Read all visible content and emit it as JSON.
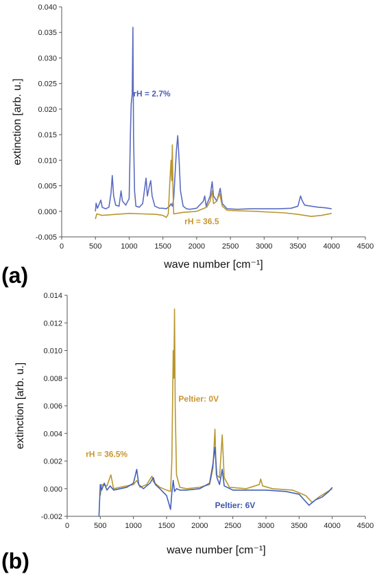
{
  "chart_data": [
    {
      "type": "line",
      "panel_label": "(a)",
      "xlabel": "wave number [cm⁻¹]",
      "ylabel": "extinction [arb. u.]",
      "xlim": [
        0,
        4500
      ],
      "ylim": [
        -0.005,
        0.04
      ],
      "xticks": [
        "0",
        "500",
        "1000",
        "1500",
        "2000",
        "2500",
        "3000",
        "3500",
        "4000",
        "4500"
      ],
      "yticks": [
        "-0.005",
        "0.000",
        "0.005",
        "0.010",
        "0.015",
        "0.020",
        "0.025",
        "0.030",
        "0.035",
        "0.040"
      ],
      "grid": false,
      "annotations": [
        {
          "text": "rH = 2.7%",
          "x": 1060,
          "y": 0.0225,
          "color": "#4a5fb5"
        },
        {
          "text": "rH = 36.5",
          "x": 1820,
          "y": -0.0025,
          "color": "#c9962e"
        }
      ],
      "series": [
        {
          "color": "#5a6bc0",
          "points": [
            [
              500,
              0
            ],
            [
              510,
              0.0016
            ],
            [
              530,
              0.0006
            ],
            [
              550,
              0.0012
            ],
            [
              580,
              0.0022
            ],
            [
              600,
              0.0008
            ],
            [
              650,
              0.0005
            ],
            [
              700,
              0.0008
            ],
            [
              730,
              0.0035
            ],
            [
              750,
              0.007
            ],
            [
              770,
              0.003
            ],
            [
              800,
              0.0012
            ],
            [
              850,
              0.001
            ],
            [
              880,
              0.004
            ],
            [
              900,
              0.002
            ],
            [
              950,
              0.0012
            ],
            [
              1000,
              0.0025
            ],
            [
              1020,
              0.016
            ],
            [
              1030,
              0.021
            ],
            [
              1045,
              0.023
            ],
            [
              1055,
              0.036
            ],
            [
              1065,
              0.015
            ],
            [
              1080,
              0.004
            ],
            [
              1100,
              0.001
            ],
            [
              1150,
              0.0008
            ],
            [
              1200,
              0.0015
            ],
            [
              1250,
              0.0065
            ],
            [
              1270,
              0.003
            ],
            [
              1300,
              0.005
            ],
            [
              1320,
              0.006
            ],
            [
              1340,
              0.003
            ],
            [
              1380,
              0.001
            ],
            [
              1450,
              0.0006
            ],
            [
              1500,
              0.0006
            ],
            [
              1550,
              0.0005
            ],
            [
              1600,
              0.001
            ],
            [
              1620,
              0.0015
            ],
            [
              1640,
              0.001
            ],
            [
              1660,
              0.0025
            ],
            [
              1700,
              0.012
            ],
            [
              1720,
              0.0148
            ],
            [
              1740,
              0.01
            ],
            [
              1760,
              0.004
            ],
            [
              1800,
              0.001
            ],
            [
              1850,
              0.0005
            ],
            [
              1900,
              0.0004
            ],
            [
              2000,
              0.0006
            ],
            [
              2100,
              0.002
            ],
            [
              2120,
              0.003
            ],
            [
              2140,
              0.001
            ],
            [
              2200,
              0.003
            ],
            [
              2230,
              0.0058
            ],
            [
              2250,
              0.003
            ],
            [
              2300,
              0.002
            ],
            [
              2350,
              0.0045
            ],
            [
              2380,
              0.0015
            ],
            [
              2450,
              0.0005
            ],
            [
              2600,
              0.0004
            ],
            [
              2800,
              0.0005
            ],
            [
              3000,
              0.0005
            ],
            [
              3200,
              0.0005
            ],
            [
              3400,
              0.0006
            ],
            [
              3500,
              0.001
            ],
            [
              3540,
              0.003
            ],
            [
              3560,
              0.0022
            ],
            [
              3600,
              0.0012
            ],
            [
              3700,
              0.001
            ],
            [
              3800,
              0.0008
            ],
            [
              3900,
              0.0007
            ],
            [
              4000,
              0.0005
            ]
          ]
        },
        {
          "color": "#b8962e",
          "points": [
            [
              500,
              -0.0015
            ],
            [
              520,
              -0.0005
            ],
            [
              600,
              -0.0008
            ],
            [
              800,
              -0.0006
            ],
            [
              1000,
              -0.0004
            ],
            [
              1200,
              -0.0005
            ],
            [
              1400,
              -0.0006
            ],
            [
              1500,
              -0.0008
            ],
            [
              1550,
              -0.0012
            ],
            [
              1580,
              -0.0005
            ],
            [
              1600,
              0.005
            ],
            [
              1620,
              0.01
            ],
            [
              1630,
              0.006
            ],
            [
              1640,
              0.013
            ],
            [
              1650,
              0.004
            ],
            [
              1660,
              -0.0005
            ],
            [
              1700,
              -0.0004
            ],
            [
              1800,
              -0.0002
            ],
            [
              2000,
              0.0
            ],
            [
              2150,
              0.0008
            ],
            [
              2200,
              0.002
            ],
            [
              2230,
              0.004
            ],
            [
              2250,
              0.0015
            ],
            [
              2300,
              0.002
            ],
            [
              2340,
              0.0035
            ],
            [
              2380,
              0.001
            ],
            [
              2450,
              0.0002
            ],
            [
              2600,
              0.0001
            ],
            [
              2900,
              0.0
            ],
            [
              3000,
              -0.0001
            ],
            [
              3300,
              -0.0003
            ],
            [
              3500,
              -0.0006
            ],
            [
              3700,
              -0.001
            ],
            [
              3850,
              -0.0008
            ],
            [
              4000,
              -0.0004
            ]
          ]
        }
      ]
    },
    {
      "type": "line",
      "panel_label": "(b)",
      "xlabel": "wave number [cm⁻¹]",
      "ylabel": "extinction [arb. u.]",
      "xlim": [
        0,
        4500
      ],
      "ylim": [
        -0.002,
        0.014
      ],
      "xticks": [
        "0",
        "500",
        "1000",
        "1500",
        "2000",
        "2500",
        "3000",
        "3500",
        "4000",
        "4500"
      ],
      "yticks": [
        "-0.002",
        "0.000",
        "0.002",
        "0.004",
        "0.006",
        "0.008",
        "0.010",
        "0.012",
        "0.014"
      ],
      "grid": false,
      "annotations": [
        {
          "text": "Peltier: 0V",
          "x": 1680,
          "y": 0.0063,
          "color": "#c9962e"
        },
        {
          "text": "rH = 36.5%",
          "x": 280,
          "y": 0.0023,
          "color": "#c9962e"
        },
        {
          "text": "Peltier: 6V",
          "x": 2230,
          "y": -0.0014,
          "color": "#3d55b0"
        }
      ],
      "series": [
        {
          "color": "#b8962e",
          "points": [
            [
              500,
              -0.0005
            ],
            [
              520,
              0.0003
            ],
            [
              600,
              0.0002
            ],
            [
              660,
              0.001
            ],
            [
              700,
              0.0
            ],
            [
              800,
              0.0001
            ],
            [
              1000,
              0.0003
            ],
            [
              1050,
              0.0006
            ],
            [
              1100,
              0.0001
            ],
            [
              1200,
              0.0003
            ],
            [
              1280,
              0.0009
            ],
            [
              1300,
              0.0005
            ],
            [
              1400,
              0.0001
            ],
            [
              1500,
              -0.0001
            ],
            [
              1560,
              -0.0002
            ],
            [
              1580,
              0.002
            ],
            [
              1600,
              0.01
            ],
            [
              1610,
              0.008
            ],
            [
              1620,
              0.013
            ],
            [
              1630,
              0.006
            ],
            [
              1650,
              0.001
            ],
            [
              1700,
              0.0001
            ],
            [
              1800,
              0.0
            ],
            [
              2000,
              0.0001
            ],
            [
              2150,
              0.0003
            ],
            [
              2200,
              0.0015
            ],
            [
              2230,
              0.0043
            ],
            [
              2250,
              0.001
            ],
            [
              2300,
              0.0008
            ],
            [
              2340,
              0.0039
            ],
            [
              2370,
              0.0008
            ],
            [
              2450,
              0.0001
            ],
            [
              2700,
              0.0
            ],
            [
              2900,
              0.0003
            ],
            [
              2920,
              0.0007
            ],
            [
              2950,
              0.0002
            ],
            [
              3100,
              0.0
            ],
            [
              3400,
              -0.0001
            ],
            [
              3600,
              -0.0005
            ],
            [
              3700,
              -0.001
            ],
            [
              3800,
              -0.0006
            ],
            [
              3900,
              -0.0003
            ],
            [
              4000,
              0.0
            ]
          ]
        },
        {
          "color": "#4060b8",
          "points": [
            [
              480,
              -0.002
            ],
            [
              500,
              0.0003
            ],
            [
              520,
              -0.0001
            ],
            [
              560,
              0.0004
            ],
            [
              600,
              -0.0001
            ],
            [
              650,
              0.0002
            ],
            [
              700,
              -0.0001
            ],
            [
              800,
              0.0
            ],
            [
              900,
              0.0001
            ],
            [
              1000,
              0.0004
            ],
            [
              1050,
              0.0014
            ],
            [
              1080,
              0.0003
            ],
            [
              1150,
              0.0
            ],
            [
              1250,
              0.0004
            ],
            [
              1300,
              0.0008
            ],
            [
              1330,
              0.0003
            ],
            [
              1400,
              0.0
            ],
            [
              1500,
              -0.0005
            ],
            [
              1560,
              -0.0015
            ],
            [
              1580,
              -0.0003
            ],
            [
              1600,
              0.0006
            ],
            [
              1620,
              -0.0002
            ],
            [
              1650,
              0.0
            ],
            [
              1700,
              -0.0001
            ],
            [
              1800,
              -0.0001
            ],
            [
              2000,
              0.0
            ],
            [
              2150,
              0.0004
            ],
            [
              2200,
              0.0018
            ],
            [
              2230,
              0.003
            ],
            [
              2260,
              0.0008
            ],
            [
              2300,
              0.0003
            ],
            [
              2340,
              0.0014
            ],
            [
              2370,
              0.0002
            ],
            [
              2500,
              -0.0001
            ],
            [
              2700,
              -0.0001
            ],
            [
              3000,
              -0.0001
            ],
            [
              3300,
              -0.0002
            ],
            [
              3500,
              -0.0004
            ],
            [
              3650,
              -0.0012
            ],
            [
              3750,
              -0.0008
            ],
            [
              3850,
              -0.0006
            ],
            [
              3950,
              -0.0002
            ],
            [
              4000,
              0.0001
            ]
          ]
        }
      ]
    }
  ]
}
